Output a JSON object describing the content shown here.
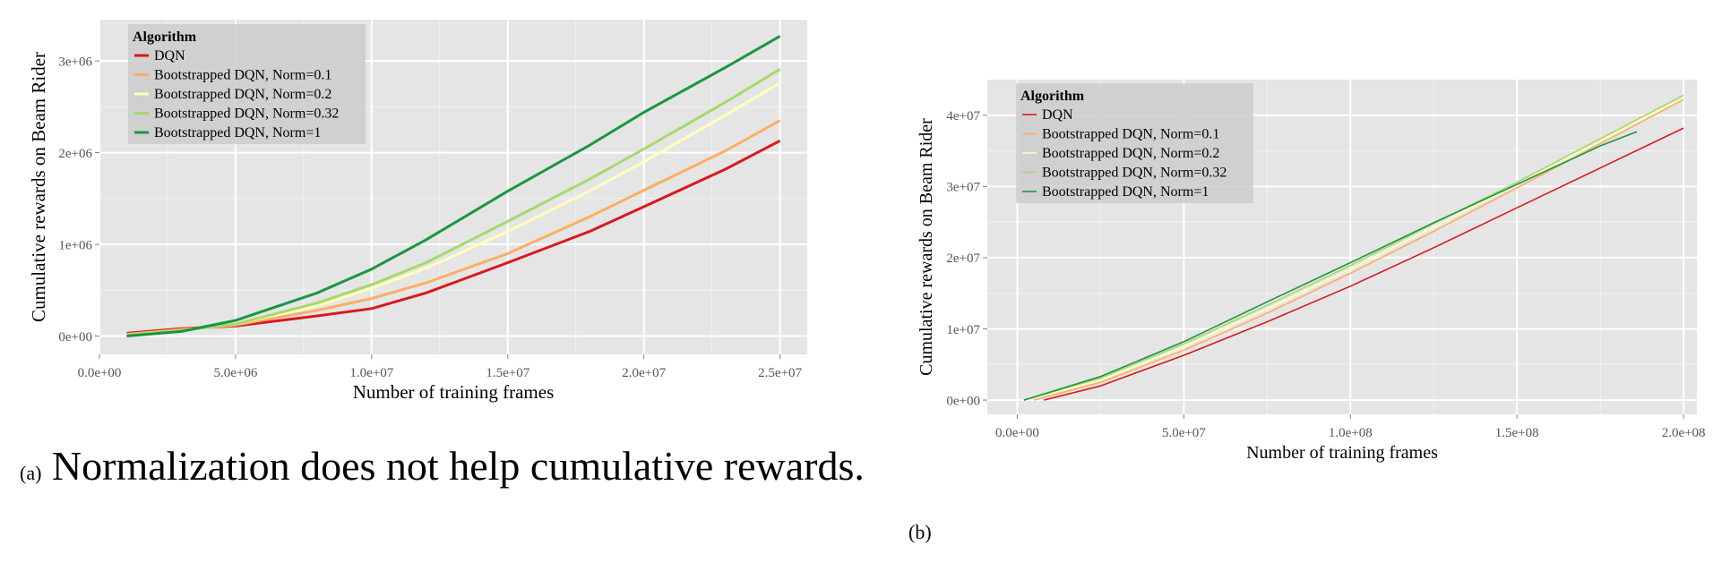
{
  "captions": {
    "a_label": "(a)",
    "a_text": "Normalization does not help cumulative rewards.",
    "b_label": "(b)"
  },
  "chart_data": [
    {
      "type": "line",
      "id": "a",
      "title": "",
      "xlabel": "Number of training frames",
      "ylabel": "Cumulative rewards on Beam Rider",
      "xlim": [
        0,
        26000000
      ],
      "ylim": [
        -200000,
        3450000
      ],
      "xticks": [
        0,
        5000000,
        10000000,
        15000000,
        20000000,
        25000000
      ],
      "xtick_labels": [
        "0.0e+00",
        "5.0e+06",
        "1.0e+07",
        "1.5e+07",
        "2.0e+07",
        "2.5e+07"
      ],
      "yticks": [
        0,
        1000000,
        2000000,
        3000000
      ],
      "ytick_labels": [
        "0e+00",
        "1e+06",
        "2e+06",
        "3e+06"
      ],
      "grid": true,
      "legend": {
        "title": "Algorithm",
        "placement": "top-left"
      },
      "series": [
        {
          "name": "DQN",
          "color": "#d7191c",
          "x": [
            1000000,
            3000000,
            5000000,
            8000000,
            10000000,
            12000000,
            15000000,
            18000000,
            20000000,
            23000000,
            25000000
          ],
          "y": [
            30000,
            80000,
            110000,
            220000,
            300000,
            470000,
            800000,
            1140000,
            1410000,
            1820000,
            2130000
          ]
        },
        {
          "name": "Bootstrapped DQN, Norm=0.1",
          "color": "#fdae61",
          "x": [
            1000000,
            3000000,
            5000000,
            8000000,
            10000000,
            12000000,
            15000000,
            18000000,
            20000000,
            23000000,
            25000000
          ],
          "y": [
            20000,
            70000,
            120000,
            280000,
            410000,
            580000,
            900000,
            1300000,
            1590000,
            2020000,
            2350000
          ]
        },
        {
          "name": "Bootstrapped DQN, Norm=0.2",
          "color": "#ffffbf",
          "x": [
            1000000,
            3000000,
            5000000,
            8000000,
            10000000,
            12000000,
            15000000,
            18000000,
            20000000,
            23000000,
            25000000
          ],
          "y": [
            10000,
            60000,
            130000,
            330000,
            520000,
            740000,
            1140000,
            1580000,
            1900000,
            2410000,
            2760000
          ]
        },
        {
          "name": "Bootstrapped DQN, Norm=0.32",
          "color": "#a6d96a",
          "x": [
            1000000,
            3000000,
            5000000,
            8000000,
            10000000,
            12000000,
            15000000,
            18000000,
            20000000,
            23000000,
            25000000
          ],
          "y": [
            10000,
            60000,
            130000,
            360000,
            560000,
            800000,
            1250000,
            1710000,
            2040000,
            2550000,
            2910000
          ]
        },
        {
          "name": "Bootstrapped DQN, Norm=1",
          "color": "#1a9641",
          "x": [
            1000000,
            3000000,
            5000000,
            8000000,
            10000000,
            12000000,
            15000000,
            18000000,
            20000000,
            23000000,
            25000000
          ],
          "y": [
            0,
            50000,
            170000,
            470000,
            730000,
            1050000,
            1580000,
            2080000,
            2440000,
            2930000,
            3270000
          ]
        }
      ]
    },
    {
      "type": "line",
      "id": "b",
      "title": "",
      "xlabel": "Number of training frames",
      "ylabel": "Cumulative rewards on Beam Rider",
      "xlim": [
        -9000000,
        204000000
      ],
      "ylim": [
        -2000000,
        45000000
      ],
      "xticks": [
        0,
        50000000,
        100000000,
        150000000,
        200000000
      ],
      "xtick_labels": [
        "0.0e+00",
        "5.0e+07",
        "1.0e+08",
        "1.5e+08",
        "2.0e+08"
      ],
      "yticks": [
        0,
        10000000,
        20000000,
        30000000,
        40000000
      ],
      "ytick_labels": [
        "0e+00",
        "1e+07",
        "2e+07",
        "3e+07",
        "4e+07"
      ],
      "grid": true,
      "legend": {
        "title": "Algorithm",
        "placement": "top-left"
      },
      "series": [
        {
          "name": "DQN",
          "color": "#d7191c",
          "x": [
            8000000,
            25000000,
            50000000,
            75000000,
            100000000,
            125000000,
            150000000,
            175000000,
            200000000
          ],
          "y": [
            0,
            2000000,
            6300000,
            11000000,
            16000000,
            21400000,
            27000000,
            32600000,
            38200000
          ]
        },
        {
          "name": "Bootstrapped DQN, Norm=0.1",
          "color": "#fdae61",
          "x": [
            5000000,
            25000000,
            50000000,
            75000000,
            100000000,
            125000000,
            150000000,
            175000000,
            200000000
          ],
          "y": [
            0,
            2500000,
            7000000,
            12200000,
            17800000,
            23700000,
            29800000,
            36000000,
            42200000
          ]
        },
        {
          "name": "Bootstrapped DQN, Norm=0.2",
          "color": "#ffffbf",
          "x": [
            2000000,
            25000000,
            50000000,
            75000000,
            100000000,
            125000000,
            150000000,
            175000000,
            200000000
          ],
          "y": [
            0,
            2800000,
            7500000,
            12800000,
            18400000,
            24300000,
            30300000,
            36400000,
            42500000
          ]
        },
        {
          "name": "Bootstrapped DQN, Norm=0.32",
          "color": "#a6d96a",
          "x": [
            2000000,
            25000000,
            50000000,
            75000000,
            100000000,
            125000000,
            150000000,
            175000000,
            200000000
          ],
          "y": [
            0,
            3100000,
            7900000,
            13300000,
            18900000,
            24800000,
            30600000,
            36700000,
            42800000
          ]
        },
        {
          "name": "Bootstrapped DQN, Norm=1",
          "color": "#1a9641",
          "x": [
            2000000,
            25000000,
            50000000,
            75000000,
            100000000,
            125000000,
            150000000,
            175000000,
            186000000
          ],
          "y": [
            0,
            3300000,
            8200000,
            13800000,
            19300000,
            24900000,
            30300000,
            35700000,
            37700000
          ]
        }
      ]
    }
  ]
}
